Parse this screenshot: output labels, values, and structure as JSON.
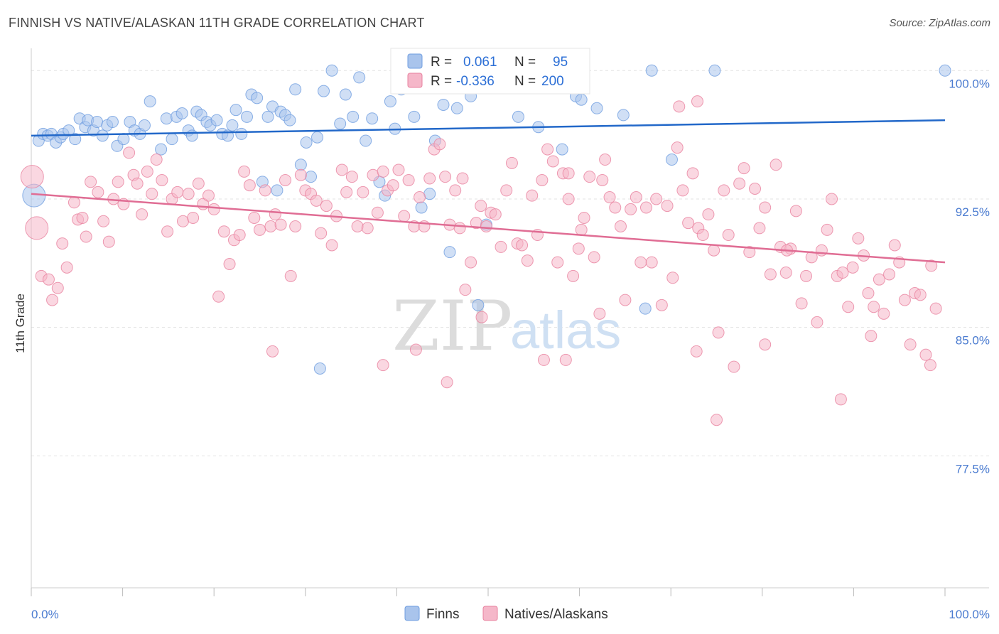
{
  "header": {
    "title": "FINNISH VS NATIVE/ALASKAN 11TH GRADE CORRELATION CHART",
    "source": "Source: ZipAtlas.com"
  },
  "watermark": {
    "zip": "ZIP",
    "atlas": "atlas"
  },
  "legend": {
    "rows": [
      {
        "r_label": "R =",
        "r_value": "0.061",
        "n_label": "N =",
        "n_value": "95",
        "color": "#a9c4ec"
      },
      {
        "r_label": "R =",
        "r_value": "-0.336",
        "n_label": "N =",
        "n_value": "200",
        "color": "#f5b7c9"
      }
    ]
  },
  "chart_data": {
    "type": "scatter",
    "title": "FINNISH VS NATIVE/ALASKAN 11TH GRADE CORRELATION CHART",
    "xlabel": "",
    "ylabel": "11th Grade",
    "x_tick_labels": [
      "0.0%",
      "100.0%"
    ],
    "y_tick_labels": [
      "100.0%",
      "92.5%",
      "85.0%",
      "77.5%"
    ],
    "y_ticks": [
      100.0,
      92.5,
      85.0,
      77.5
    ],
    "xlim": [
      0,
      100
    ],
    "ylim": [
      70.0,
      100.8
    ],
    "grid": true,
    "legend_position": "top-center",
    "series": [
      {
        "name": "Finns",
        "color": "#6f9ee0",
        "fill": "#a9c4ec",
        "trend": {
          "x": [
            0,
            100
          ],
          "y": [
            96.2,
            97.1
          ]
        },
        "points": [
          [
            0.8,
            95.9
          ],
          [
            1.3,
            96.3
          ],
          [
            1.8,
            96.2
          ],
          [
            2.2,
            96.3
          ],
          [
            2.7,
            95.8
          ],
          [
            3.2,
            96.1
          ],
          [
            3.5,
            96.3
          ],
          [
            4.1,
            96.5
          ],
          [
            4.8,
            96.0
          ],
          [
            5.3,
            97.2
          ],
          [
            5.9,
            96.7
          ],
          [
            6.2,
            97.1
          ],
          [
            6.8,
            96.5
          ],
          [
            7.2,
            97.0
          ],
          [
            7.8,
            96.2
          ],
          [
            8.3,
            96.8
          ],
          [
            8.9,
            97.0
          ],
          [
            9.4,
            95.6
          ],
          [
            10.1,
            96.0
          ],
          [
            10.8,
            97.0
          ],
          [
            11.3,
            96.5
          ],
          [
            11.9,
            96.3
          ],
          [
            12.4,
            96.8
          ],
          [
            13.0,
            98.2
          ],
          [
            14.2,
            95.4
          ],
          [
            14.8,
            97.2
          ],
          [
            15.4,
            96.0
          ],
          [
            15.9,
            97.3
          ],
          [
            16.5,
            97.5
          ],
          [
            17.2,
            96.5
          ],
          [
            17.6,
            96.2
          ],
          [
            18.1,
            97.6
          ],
          [
            18.6,
            97.4
          ],
          [
            19.2,
            97.0
          ],
          [
            19.6,
            96.8
          ],
          [
            20.3,
            97.1
          ],
          [
            20.9,
            96.3
          ],
          [
            21.5,
            96.2
          ],
          [
            22.0,
            96.8
          ],
          [
            22.4,
            97.7
          ],
          [
            23.0,
            96.3
          ],
          [
            23.6,
            97.3
          ],
          [
            24.1,
            98.6
          ],
          [
            24.7,
            98.4
          ],
          [
            25.3,
            93.5
          ],
          [
            25.9,
            97.3
          ],
          [
            26.4,
            97.9
          ],
          [
            26.9,
            93.0
          ],
          [
            27.3,
            97.6
          ],
          [
            27.8,
            97.4
          ],
          [
            28.3,
            97.1
          ],
          [
            28.9,
            98.9
          ],
          [
            29.5,
            94.5
          ],
          [
            30.1,
            95.8
          ],
          [
            30.6,
            93.8
          ],
          [
            31.3,
            96.1
          ],
          [
            32.0,
            98.8
          ],
          [
            32.9,
            100.0
          ],
          [
            33.8,
            96.9
          ],
          [
            34.4,
            98.6
          ],
          [
            35.2,
            97.3
          ],
          [
            35.9,
            99.6
          ],
          [
            36.6,
            95.9
          ],
          [
            37.3,
            97.2
          ],
          [
            38.1,
            93.5
          ],
          [
            38.7,
            92.7
          ],
          [
            39.3,
            98.2
          ],
          [
            39.8,
            96.6
          ],
          [
            40.5,
            98.9
          ],
          [
            41.1,
            100.0
          ],
          [
            41.9,
            97.3
          ],
          [
            42.7,
            92.0
          ],
          [
            43.6,
            92.8
          ],
          [
            44.2,
            95.9
          ],
          [
            45.1,
            98.0
          ],
          [
            45.8,
            89.4
          ],
          [
            46.6,
            97.8
          ],
          [
            48.1,
            98.5
          ],
          [
            48.9,
            86.3
          ],
          [
            49.8,
            91.0
          ],
          [
            51.1,
            100.0
          ],
          [
            53.3,
            97.3
          ],
          [
            55.5,
            96.7
          ],
          [
            56.9,
            100.0
          ],
          [
            58.1,
            95.4
          ],
          [
            59.6,
            98.5
          ],
          [
            60.2,
            98.3
          ],
          [
            61.9,
            97.8
          ],
          [
            64.8,
            97.4
          ],
          [
            67.2,
            86.1
          ],
          [
            67.9,
            100.0
          ],
          [
            70.1,
            94.8
          ],
          [
            74.8,
            100.0
          ],
          [
            31.6,
            82.6
          ],
          [
            100.0,
            100.0
          ]
        ],
        "big_points": [
          [
            0.3,
            92.7
          ]
        ]
      },
      {
        "name": "Natives/Alaskans",
        "color": "#e8829f",
        "fill": "#f5b7c9",
        "trend": {
          "x": [
            0,
            100
          ],
          "y": [
            92.8,
            88.8
          ]
        },
        "points": [
          [
            1.1,
            88.0
          ],
          [
            1.9,
            87.8
          ],
          [
            2.3,
            86.6
          ],
          [
            2.9,
            87.3
          ],
          [
            3.4,
            89.9
          ],
          [
            3.9,
            88.5
          ],
          [
            4.7,
            92.3
          ],
          [
            5.1,
            91.3
          ],
          [
            5.6,
            91.4
          ],
          [
            6.0,
            90.3
          ],
          [
            6.5,
            93.5
          ],
          [
            7.3,
            92.9
          ],
          [
            7.9,
            91.2
          ],
          [
            8.5,
            90.0
          ],
          [
            9.0,
            92.5
          ],
          [
            9.5,
            93.5
          ],
          [
            10.1,
            92.2
          ],
          [
            10.7,
            95.2
          ],
          [
            11.2,
            93.9
          ],
          [
            11.6,
            93.4
          ],
          [
            12.1,
            91.6
          ],
          [
            12.7,
            94.1
          ],
          [
            13.2,
            92.8
          ],
          [
            13.7,
            94.8
          ],
          [
            14.3,
            93.6
          ],
          [
            14.9,
            90.6
          ],
          [
            15.4,
            92.5
          ],
          [
            16.0,
            92.9
          ],
          [
            16.6,
            91.2
          ],
          [
            17.2,
            92.8
          ],
          [
            17.7,
            91.4
          ],
          [
            18.3,
            93.4
          ],
          [
            18.8,
            92.2
          ],
          [
            19.4,
            92.7
          ],
          [
            20.0,
            91.9
          ],
          [
            20.5,
            86.8
          ],
          [
            21.1,
            90.6
          ],
          [
            21.7,
            88.7
          ],
          [
            22.2,
            90.1
          ],
          [
            22.8,
            90.4
          ],
          [
            23.3,
            94.1
          ],
          [
            23.9,
            93.3
          ],
          [
            24.4,
            91.4
          ],
          [
            25.0,
            90.7
          ],
          [
            25.6,
            93.0
          ],
          [
            26.2,
            90.9
          ],
          [
            26.7,
            91.6
          ],
          [
            27.3,
            91.0
          ],
          [
            27.8,
            93.6
          ],
          [
            28.4,
            88.0
          ],
          [
            28.9,
            90.9
          ],
          [
            29.5,
            93.9
          ],
          [
            30.0,
            93.0
          ],
          [
            30.6,
            92.8
          ],
          [
            31.2,
            92.4
          ],
          [
            31.7,
            90.5
          ],
          [
            32.3,
            92.1
          ],
          [
            32.9,
            89.8
          ],
          [
            33.4,
            91.5
          ],
          [
            34.0,
            94.2
          ],
          [
            34.5,
            92.9
          ],
          [
            35.1,
            93.8
          ],
          [
            35.7,
            90.9
          ],
          [
            36.3,
            92.9
          ],
          [
            36.8,
            90.8
          ],
          [
            37.4,
            93.9
          ],
          [
            37.9,
            91.7
          ],
          [
            38.5,
            94.1
          ],
          [
            39.0,
            93.0
          ],
          [
            39.6,
            93.3
          ],
          [
            40.2,
            94.2
          ],
          [
            40.8,
            91.5
          ],
          [
            41.3,
            93.6
          ],
          [
            41.9,
            90.9
          ],
          [
            42.5,
            92.6
          ],
          [
            43.0,
            90.9
          ],
          [
            43.6,
            93.7
          ],
          [
            44.1,
            95.4
          ],
          [
            44.7,
            95.7
          ],
          [
            45.3,
            93.8
          ],
          [
            45.8,
            91.0
          ],
          [
            46.4,
            93.0
          ],
          [
            46.9,
            90.8
          ],
          [
            47.5,
            87.2
          ],
          [
            48.1,
            88.8
          ],
          [
            48.7,
            91.1
          ],
          [
            49.2,
            92.1
          ],
          [
            49.8,
            90.9
          ],
          [
            50.3,
            91.7
          ],
          [
            50.8,
            91.6
          ],
          [
            51.4,
            89.7
          ],
          [
            52.0,
            93.0
          ],
          [
            52.6,
            94.6
          ],
          [
            53.2,
            89.9
          ],
          [
            53.7,
            89.8
          ],
          [
            54.3,
            88.9
          ],
          [
            54.8,
            92.7
          ],
          [
            55.4,
            90.4
          ],
          [
            55.9,
            93.6
          ],
          [
            56.5,
            95.4
          ],
          [
            57.1,
            94.7
          ],
          [
            57.6,
            88.8
          ],
          [
            58.2,
            94.0
          ],
          [
            58.8,
            92.5
          ],
          [
            59.3,
            88.0
          ],
          [
            59.9,
            89.6
          ],
          [
            60.5,
            91.4
          ],
          [
            61.1,
            93.8
          ],
          [
            61.6,
            89.1
          ],
          [
            62.2,
            85.8
          ],
          [
            62.8,
            94.8
          ],
          [
            63.3,
            92.6
          ],
          [
            63.9,
            92.0
          ],
          [
            64.5,
            90.9
          ],
          [
            65.0,
            86.6
          ],
          [
            65.6,
            91.9
          ],
          [
            66.2,
            92.6
          ],
          [
            66.7,
            88.8
          ],
          [
            67.3,
            92.0
          ],
          [
            67.9,
            88.8
          ],
          [
            68.4,
            92.5
          ],
          [
            69.0,
            86.3
          ],
          [
            69.6,
            92.1
          ],
          [
            70.2,
            87.9
          ],
          [
            70.7,
            95.5
          ],
          [
            71.3,
            93.0
          ],
          [
            71.9,
            91.1
          ],
          [
            72.4,
            94.0
          ],
          [
            73.0,
            90.8
          ],
          [
            73.5,
            90.4
          ],
          [
            74.1,
            91.6
          ],
          [
            74.7,
            89.5
          ],
          [
            75.2,
            84.7
          ],
          [
            75.8,
            93.0
          ],
          [
            76.3,
            90.4
          ],
          [
            76.9,
            82.7
          ],
          [
            77.5,
            93.4
          ],
          [
            78.0,
            94.3
          ],
          [
            78.6,
            89.4
          ],
          [
            79.2,
            93.1
          ],
          [
            79.7,
            90.8
          ],
          [
            80.3,
            92.0
          ],
          [
            80.9,
            88.1
          ],
          [
            81.5,
            94.5
          ],
          [
            82.0,
            89.7
          ],
          [
            82.6,
            88.2
          ],
          [
            83.1,
            89.6
          ],
          [
            83.7,
            91.8
          ],
          [
            84.3,
            86.4
          ],
          [
            84.8,
            88.0
          ],
          [
            85.4,
            89.1
          ],
          [
            86.0,
            85.3
          ],
          [
            86.5,
            89.5
          ],
          [
            87.1,
            90.7
          ],
          [
            87.6,
            92.5
          ],
          [
            88.2,
            88.0
          ],
          [
            88.8,
            88.2
          ],
          [
            89.4,
            86.2
          ],
          [
            89.9,
            88.5
          ],
          [
            90.5,
            90.2
          ],
          [
            91.1,
            89.2
          ],
          [
            91.6,
            87.0
          ],
          [
            92.2,
            86.2
          ],
          [
            92.8,
            87.8
          ],
          [
            93.3,
            85.8
          ],
          [
            93.9,
            88.1
          ],
          [
            94.5,
            89.8
          ],
          [
            95.0,
            88.8
          ],
          [
            95.6,
            86.6
          ],
          [
            96.2,
            84.0
          ],
          [
            96.7,
            87.0
          ],
          [
            97.3,
            86.9
          ],
          [
            97.9,
            83.4
          ],
          [
            98.4,
            82.8
          ],
          [
            99.0,
            86.1
          ],
          [
            49.3,
            85.6
          ],
          [
            38.5,
            82.8
          ],
          [
            45.5,
            81.8
          ],
          [
            56.1,
            83.1
          ],
          [
            58.5,
            83.1
          ],
          [
            75.0,
            79.6
          ],
          [
            72.8,
            83.6
          ],
          [
            60.2,
            90.7
          ],
          [
            82.7,
            89.5
          ],
          [
            98.5,
            88.6
          ],
          [
            70.9,
            97.9
          ],
          [
            72.9,
            98.2
          ],
          [
            58.8,
            94.0
          ],
          [
            47.2,
            93.7
          ],
          [
            26.4,
            83.6
          ],
          [
            42.1,
            83.7
          ],
          [
            62.5,
            93.6
          ],
          [
            88.6,
            80.8
          ],
          [
            80.3,
            84.0
          ],
          [
            91.9,
            84.5
          ]
        ],
        "big_points": [
          [
            0.1,
            93.8
          ],
          [
            0.6,
            90.8
          ]
        ]
      }
    ]
  },
  "bottom_legend": {
    "items": [
      {
        "label": "Finns"
      },
      {
        "label": "Natives/Alaskans"
      }
    ]
  }
}
